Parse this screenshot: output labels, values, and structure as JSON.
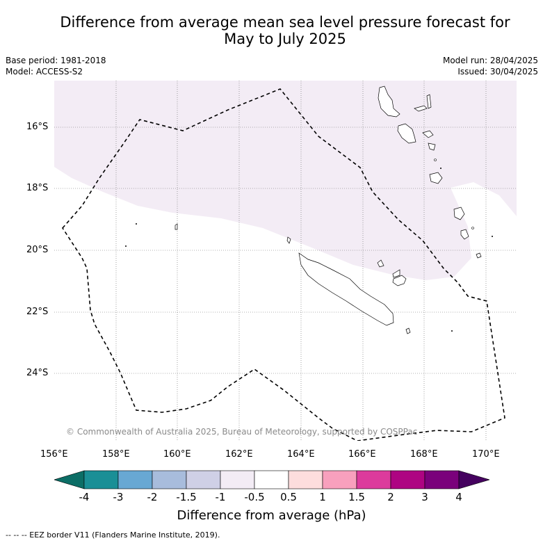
{
  "title_line1": "Difference from average mean sea level pressure forecast for",
  "title_line2": "May to July 2025",
  "meta": {
    "base_period": "Base period: 1981-2018",
    "model": "Model: ACCESS-S2",
    "model_run": "Model run: 28/04/2025",
    "issued": "Issued: 30/04/2025"
  },
  "lat_labels": [
    "16°S",
    "18°S",
    "20°S",
    "22°S",
    "24°S"
  ],
  "lon_labels": [
    "156°E",
    "158°E",
    "160°E",
    "162°E",
    "164°E",
    "166°E",
    "168°E",
    "170°E"
  ],
  "copyright": "© Commonwealth of Australia 2025, Bureau of Meteorology, supported by COSPPac",
  "colorbar": {
    "title": "Difference from average (hPa)",
    "ticks": [
      "-4",
      "-3",
      "-2",
      "-1.5",
      "-1",
      "-0.5",
      "0.5",
      "1",
      "1.5",
      "2",
      "3",
      "4"
    ],
    "colors": [
      "#0c6e66",
      "#1a8f96",
      "#68a8d3",
      "#a8bcdc",
      "#cfd0e6",
      "#f3ecf5",
      "#ffffff",
      "#fddddd",
      "#f8a0bd",
      "#dc3b9c",
      "#ae0482",
      "#7a017b",
      "#45025f"
    ]
  },
  "shaded_region_color": "#f3ecf5",
  "footer": "--  --  -- EEZ border V11 (Flanders Marine Institute, 2019)."
}
